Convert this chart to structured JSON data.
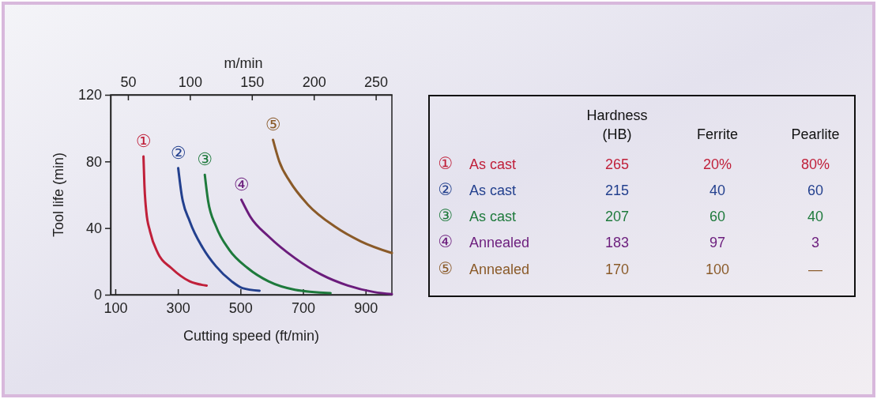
{
  "chart_data": [
    {
      "type": "line",
      "xlabel": "Cutting speed (ft/min)",
      "ylabel": "Tool life (min)",
      "x2label": "m/min",
      "xlim": [
        85,
        984
      ],
      "xticks": [
        100,
        300,
        500,
        700,
        900
      ],
      "x2lim": [
        36,
        263
      ],
      "x2ticks": [
        50,
        100,
        150,
        200,
        250
      ],
      "ylim": [
        0,
        120
      ],
      "yticks": [
        0,
        40,
        80,
        120
      ],
      "series": [
        {
          "name": "①",
          "color": "#c0203a",
          "x": [
            190,
            193,
            199,
            211,
            236,
            279,
            338,
            392
          ],
          "values": [
            83,
            66,
            50,
            38,
            25,
            16,
            8,
            5.5
          ]
        },
        {
          "name": "②",
          "color": "#23408e",
          "x": [
            301,
            312,
            338,
            380,
            422,
            472,
            506,
            561
          ],
          "values": [
            76,
            60,
            44,
            28,
            17,
            8,
            4,
            2.4
          ]
        },
        {
          "name": "③",
          "color": "#1e7a3c",
          "x": [
            386,
            396,
            422,
            464,
            523,
            590,
            674,
            788
          ],
          "values": [
            72,
            57,
            41,
            27,
            16,
            8,
            3,
            1
          ]
        },
        {
          "name": "④",
          "color": "#6b1c7c",
          "x": [
            503,
            531,
            590,
            674,
            759,
            843,
            927,
            984
          ],
          "values": [
            57,
            47,
            35,
            22,
            12,
            5.5,
            1.6,
            0.3
          ]
        },
        {
          "name": "⑤",
          "color": "#8a5a28",
          "x": [
            604,
            624,
            658,
            716,
            801,
            885,
            984
          ],
          "values": [
            93,
            80,
            68,
            54,
            41,
            32,
            25
          ]
        }
      ]
    },
    {
      "type": "other",
      "annotations": [
        "Hardness (HB)",
        "Ferrite",
        "Pearlite",
        "①",
        "As cast",
        "265",
        "20%",
        "80%",
        "②",
        "As cast",
        "215",
        "40",
        "60",
        "③",
        "As cast",
        "207",
        "60",
        "40",
        "④",
        "Annealed",
        "183",
        "97",
        "3",
        "⑤",
        "Annealed",
        "170",
        "100",
        "—"
      ]
    }
  ]
}
